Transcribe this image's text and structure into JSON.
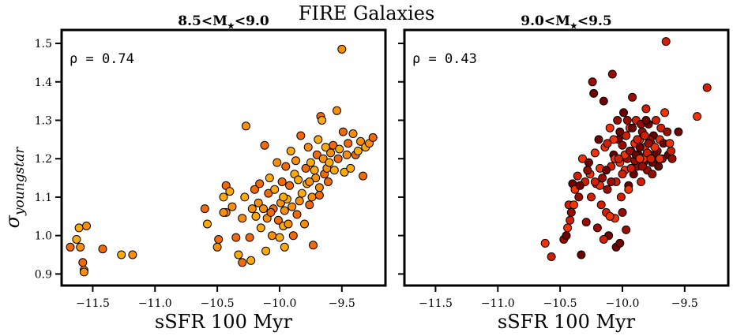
{
  "figure_title": "FIRE Galaxies",
  "ylabel_sym": "σ",
  "ylabel_sub": "youngstar",
  "chart_data": [
    {
      "type": "scatter",
      "title": "8.5<M",
      "title_suffix": "<9.0",
      "annotation": "ρ = 0.74",
      "xlabel": "sSFR 100 Myr",
      "ylabel": "σ youngstar",
      "xlim": [
        -11.75,
        -9.15
      ],
      "ylim": [
        0.87,
        1.535
      ],
      "xticks": [
        -11.5,
        -11.0,
        -10.5,
        -10.0,
        -9.5
      ],
      "xticklabels": [
        "−11.5",
        "−11.0",
        "−10.5",
        "−10.0",
        "−9.5"
      ],
      "yticks": [
        0.9,
        1.0,
        1.1,
        1.2,
        1.3,
        1.4,
        1.5
      ],
      "yticklabels": [
        "0.9",
        "1.0",
        "1.1",
        "1.2",
        "1.3",
        "1.4",
        "1.5"
      ],
      "grid": false,
      "marker_colors": [
        "#fcaa0a",
        "#f98e0a",
        "#f06a0a"
      ],
      "points": [
        [
          -11.61,
          1.02
        ],
        [
          -11.55,
          1.025
        ],
        [
          -11.68,
          0.97
        ],
        [
          -11.63,
          0.99
        ],
        [
          -11.6,
          0.97
        ],
        [
          -11.58,
          0.93
        ],
        [
          -11.57,
          0.91
        ],
        [
          -11.57,
          0.905
        ],
        [
          -11.42,
          0.965
        ],
        [
          -11.27,
          0.95
        ],
        [
          -11.18,
          0.95
        ],
        [
          -10.6,
          1.07
        ],
        [
          -10.58,
          1.03
        ],
        [
          -10.5,
          0.97
        ],
        [
          -10.49,
          0.99
        ],
        [
          -10.45,
          1.1
        ],
        [
          -10.43,
          1.06
        ],
        [
          -10.43,
          1.13
        ],
        [
          -10.4,
          1.115
        ],
        [
          -10.38,
          1.075
        ],
        [
          -10.35,
          0.995
        ],
        [
          -10.33,
          0.95
        ],
        [
          -10.3,
          1.045
        ],
        [
          -10.3,
          0.93
        ],
        [
          -10.28,
          1.1
        ],
        [
          -10.27,
          1.285
        ],
        [
          -10.24,
          0.995
        ],
        [
          -10.23,
          0.935
        ],
        [
          -10.22,
          1.07
        ],
        [
          -10.2,
          1.12
        ],
        [
          -10.19,
          1.05
        ],
        [
          -10.17,
          1.085
        ],
        [
          -10.16,
          1.135
        ],
        [
          -10.15,
          1.02
        ],
        [
          -10.13,
          1.07
        ],
        [
          -10.12,
          1.235
        ],
        [
          -10.11,
          0.96
        ],
        [
          -10.1,
          1.045
        ],
        [
          -10.09,
          1.11
        ],
        [
          -10.08,
          1.15
        ],
        [
          -10.06,
          1.0
        ],
        [
          -10.05,
          1.07
        ],
        [
          -10.04,
          1.12
        ],
        [
          -10.02,
          1.19
        ],
        [
          -10.01,
          1.04
        ],
        [
          -10.0,
          0.995
        ],
        [
          -9.99,
          1.085
        ],
        [
          -9.98,
          1.14
        ],
        [
          -9.97,
          1.025
        ],
        [
          -9.96,
          1.065
        ],
        [
          -9.95,
          1.18
        ],
        [
          -9.94,
          1.095
        ],
        [
          -9.93,
          1.03
        ],
        [
          -9.92,
          1.13
        ],
        [
          -9.91,
          1.22
        ],
        [
          -9.9,
          1.075
        ],
        [
          -9.89,
          1.0
        ],
        [
          -9.88,
          1.16
        ],
        [
          -9.87,
          1.195
        ],
        [
          -9.86,
          1.055
        ],
        [
          -9.85,
          1.145
        ],
        [
          -9.84,
          1.09
        ],
        [
          -9.83,
          1.26
        ],
        [
          -9.82,
          1.11
        ],
        [
          -9.8,
          1.03
        ],
        [
          -9.79,
          1.175
        ],
        [
          -9.78,
          1.135
        ],
        [
          -9.77,
          1.23
        ],
        [
          -9.76,
          1.08
        ],
        [
          -9.75,
          1.19
        ],
        [
          -9.74,
          1.1
        ],
        [
          -9.73,
          0.975
        ],
        [
          -9.72,
          1.17
        ],
        [
          -9.71,
          1.15
        ],
        [
          -9.7,
          1.21
        ],
        [
          -9.69,
          1.25
        ],
        [
          -9.68,
          1.125
        ],
        [
          -9.67,
          1.31
        ],
        [
          -9.66,
          1.3
        ],
        [
          -9.65,
          1.2
        ],
        [
          -9.64,
          1.16
        ],
        [
          -9.63,
          1.23
        ],
        [
          -9.62,
          1.175
        ],
        [
          -9.61,
          1.14
        ],
        [
          -9.6,
          1.19
        ],
        [
          -9.59,
          1.215
        ],
        [
          -9.57,
          1.235
        ],
        [
          -9.56,
          1.17
        ],
        [
          -9.54,
          1.325
        ],
        [
          -9.53,
          1.2
        ],
        [
          -9.52,
          1.225
        ],
        [
          -9.5,
          1.485
        ],
        [
          -9.49,
          1.27
        ],
        [
          -9.48,
          1.165
        ],
        [
          -9.46,
          1.21
        ],
        [
          -9.45,
          1.24
        ],
        [
          -9.43,
          1.175
        ],
        [
          -9.41,
          1.265
        ],
        [
          -9.39,
          1.21
        ],
        [
          -9.37,
          1.22
        ],
        [
          -9.35,
          1.245
        ],
        [
          -9.33,
          1.155
        ],
        [
          -9.31,
          1.23
        ],
        [
          -9.28,
          1.24
        ],
        [
          -9.25,
          1.255
        ],
        [
          -9.96,
          0.97
        ],
        [
          -10.45,
          1.06
        ],
        [
          -10.07,
          1.06
        ],
        [
          -9.97,
          1.1
        ],
        [
          -9.76,
          1.14
        ],
        [
          -9.68,
          1.105
        ]
      ]
    },
    {
      "type": "scatter",
      "title": "9.0<M",
      "title_suffix": "<9.5",
      "annotation": "ρ = 0.43",
      "xlabel": "sSFR 100 Myr",
      "ylabel": "",
      "xlim": [
        -11.75,
        -9.15
      ],
      "ylim": [
        0.87,
        1.535
      ],
      "xticks": [
        -11.5,
        -11.0,
        -10.5,
        -10.0,
        -9.5
      ],
      "xticklabels": [
        "−11.5",
        "−11.0",
        "−10.5",
        "−10.0",
        "−9.5"
      ],
      "yticks": [
        0.9,
        1.0,
        1.1,
        1.2,
        1.3,
        1.4,
        1.5
      ],
      "yticklabels": [],
      "grid": false,
      "marker_colors": [
        "#f43208",
        "#d41e06",
        "#9a0c04",
        "#6e0202"
      ],
      "points": [
        [
          -10.62,
          0.98
        ],
        [
          -10.57,
          0.945
        ],
        [
          -10.47,
          0.99
        ],
        [
          -10.45,
          1.0
        ],
        [
          -10.44,
          1.02
        ],
        [
          -10.43,
          1.08
        ],
        [
          -10.41,
          1.06
        ],
        [
          -10.4,
          1.135
        ],
        [
          -10.38,
          1.12
        ],
        [
          -10.36,
          1.155
        ],
        [
          -10.35,
          1.1
        ],
        [
          -10.33,
          0.95
        ],
        [
          -10.32,
          1.2
        ],
        [
          -10.3,
          1.14
        ],
        [
          -10.29,
          1.035
        ],
        [
          -10.27,
          1.19
        ],
        [
          -10.26,
          1.16
        ],
        [
          -10.25,
          1.1
        ],
        [
          -10.24,
          1.4
        ],
        [
          -10.23,
          1.37
        ],
        [
          -10.22,
          1.215
        ],
        [
          -10.21,
          1.135
        ],
        [
          -10.2,
          1.02
        ],
        [
          -10.19,
          1.25
        ],
        [
          -10.18,
          1.175
        ],
        [
          -10.17,
          1.08
        ],
        [
          -10.16,
          1.15
        ],
        [
          -10.15,
          1.35
        ],
        [
          -10.14,
          1.23
        ],
        [
          -10.13,
          1.06
        ],
        [
          -10.12,
          1.12
        ],
        [
          -10.11,
          1.0
        ],
        [
          -10.1,
          1.28
        ],
        [
          -10.09,
          1.18
        ],
        [
          -10.08,
          1.42
        ],
        [
          -10.07,
          1.21
        ],
        [
          -10.06,
          1.045
        ],
        [
          -10.05,
          1.14
        ],
        [
          -10.04,
          1.3
        ],
        [
          -10.03,
          1.25
        ],
        [
          -10.02,
          1.19
        ],
        [
          -10.01,
          1.1
        ],
        [
          -10.0,
          1.235
        ],
        [
          -9.99,
          1.32
        ],
        [
          -9.98,
          1.17
        ],
        [
          -9.97,
          1.26
        ],
        [
          -9.96,
          1.2
        ],
        [
          -9.95,
          1.13
        ],
        [
          -9.94,
          1.28
        ],
        [
          -9.93,
          1.22
        ],
        [
          -9.92,
          1.36
        ],
        [
          -9.91,
          1.16
        ],
        [
          -9.9,
          1.24
        ],
        [
          -9.89,
          1.3
        ],
        [
          -9.88,
          1.18
        ],
        [
          -9.87,
          1.21
        ],
        [
          -9.86,
          1.25
        ],
        [
          -9.85,
          1.14
        ],
        [
          -9.84,
          1.27
        ],
        [
          -9.83,
          1.19
        ],
        [
          -9.82,
          1.23
        ],
        [
          -9.81,
          1.33
        ],
        [
          -9.8,
          1.17
        ],
        [
          -9.79,
          1.29
        ],
        [
          -9.78,
          1.21
        ],
        [
          -9.77,
          1.24
        ],
        [
          -9.76,
          1.16
        ],
        [
          -9.75,
          1.26
        ],
        [
          -9.74,
          1.2
        ],
        [
          -9.73,
          1.3
        ],
        [
          -9.72,
          1.22
        ],
        [
          -9.71,
          1.18
        ],
        [
          -9.7,
          1.25
        ],
        [
          -9.69,
          1.28
        ],
        [
          -9.68,
          1.2
        ],
        [
          -9.67,
          1.24
        ],
        [
          -9.66,
          1.32
        ],
        [
          -9.65,
          1.505
        ],
        [
          -9.64,
          1.27
        ],
        [
          -9.63,
          1.21
        ],
        [
          -9.62,
          1.24
        ],
        [
          -9.61,
          1.22
        ],
        [
          -9.6,
          1.2
        ],
        [
          -9.55,
          1.27
        ],
        [
          -9.4,
          1.31
        ],
        [
          -9.32,
          1.385
        ],
        [
          -10.0,
          1.06
        ],
        [
          -10.05,
          0.97
        ],
        [
          -10.1,
          1.05
        ],
        [
          -10.15,
          0.99
        ],
        [
          -9.97,
          1.015
        ],
        [
          -10.02,
          0.98
        ],
        [
          -9.95,
          1.12
        ],
        [
          -9.93,
          1.175
        ],
        [
          -9.9,
          1.195
        ],
        [
          -9.86,
          1.23
        ],
        [
          -9.83,
          1.2
        ],
        [
          -9.8,
          1.215
        ],
        [
          -9.78,
          1.25
        ],
        [
          -9.76,
          1.19
        ],
        [
          -9.74,
          1.23
        ],
        [
          -9.88,
          1.25
        ],
        [
          -9.84,
          1.18
        ],
        [
          -10.02,
          1.27
        ],
        [
          -10.07,
          1.25
        ],
        [
          -10.12,
          1.24
        ],
        [
          -9.96,
          1.3
        ],
        [
          -9.92,
          1.28
        ],
        [
          -9.98,
          1.21
        ],
        [
          -10.0,
          1.16
        ],
        [
          -9.94,
          1.22
        ],
        [
          -9.89,
          1.21
        ],
        [
          -9.86,
          1.2
        ],
        [
          -9.82,
          1.26
        ],
        [
          -9.79,
          1.24
        ],
        [
          -9.73,
          1.21
        ],
        [
          -9.7,
          1.2
        ],
        [
          -9.77,
          1.2
        ],
        [
          -9.85,
          1.29
        ],
        [
          -9.81,
          1.3
        ],
        [
          -10.06,
          1.2
        ],
        [
          -10.03,
          1.2
        ],
        [
          -10.09,
          1.14
        ],
        [
          -10.13,
          1.17
        ],
        [
          -10.18,
          1.13
        ],
        [
          -10.22,
          1.14
        ],
        [
          -10.28,
          1.17
        ],
        [
          -10.34,
          1.13
        ],
        [
          -10.39,
          1.08
        ],
        [
          -10.42,
          1.04
        ]
      ]
    }
  ]
}
